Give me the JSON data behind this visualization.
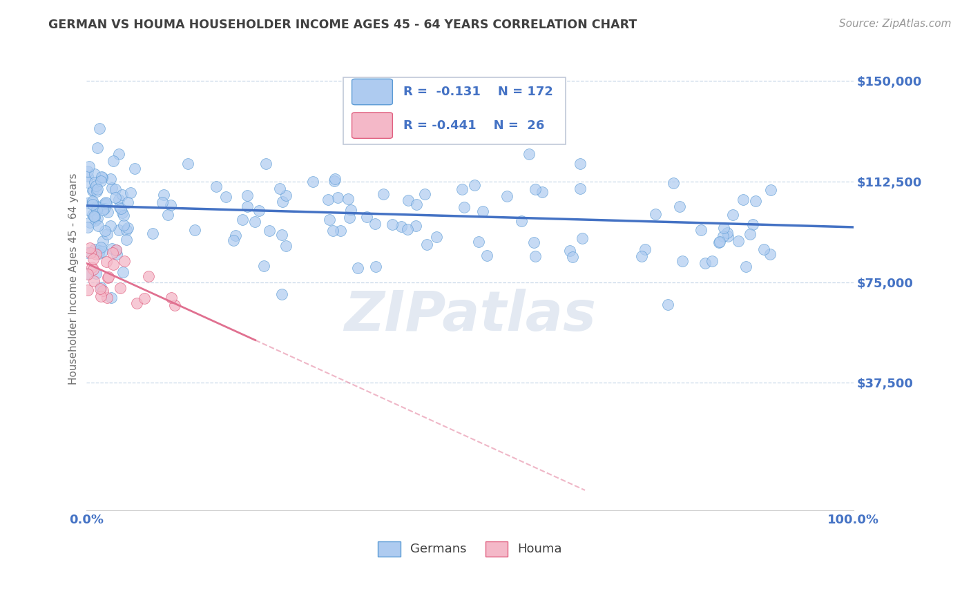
{
  "title": "GERMAN VS HOUMA HOUSEHOLDER INCOME AGES 45 - 64 YEARS CORRELATION CHART",
  "source": "Source: ZipAtlas.com",
  "ylabel": "Householder Income Ages 45 - 64 years",
  "xlim": [
    0,
    1
  ],
  "ylim": [
    -10000,
    162500
  ],
  "yticks": [
    37500,
    75000,
    112500,
    150000
  ],
  "ytick_labels": [
    "$37,500",
    "$75,000",
    "$112,500",
    "$150,000"
  ],
  "german_R": -0.131,
  "german_N": 172,
  "houma_R": -0.441,
  "houma_N": 26,
  "german_color": "#aecbf0",
  "german_edge_color": "#5b9bd5",
  "houma_color": "#f4b8c8",
  "houma_edge_color": "#e06080",
  "german_line_color": "#4472c4",
  "houma_line_color": "#e07090",
  "background_color": "#ffffff",
  "grid_color": "#c8d8e8",
  "title_color": "#404040",
  "tick_label_color": "#4472c4",
  "watermark_color": "#ccd8e8",
  "german_trend_intercept": 103500,
  "german_trend_slope": -8000,
  "houma_trend_intercept": 82000,
  "houma_trend_slope": -130000
}
